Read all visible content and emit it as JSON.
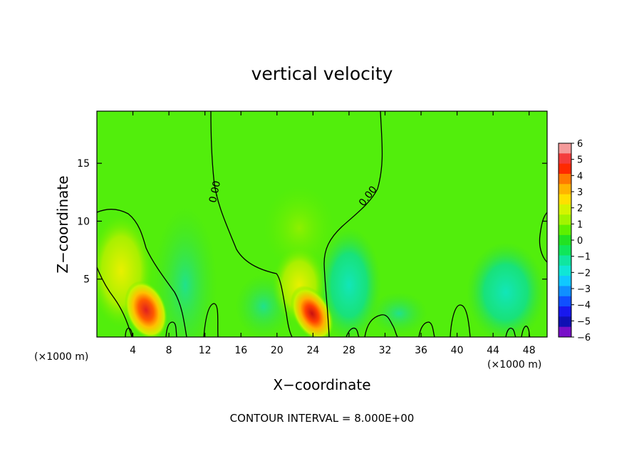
{
  "chart_data": {
    "type": "heatmap",
    "title": "vertical velocity",
    "xlabel": "X−coordinate",
    "ylabel": "Z−coordinate",
    "x_unit_left": "(×1000 m)",
    "x_unit_right": "(×1000 m)",
    "xlim": [
      0,
      50
    ],
    "ylim": [
      0,
      19.5
    ],
    "xticks": [
      4,
      8,
      12,
      16,
      20,
      24,
      28,
      32,
      36,
      40,
      44,
      48
    ],
    "yticks": [
      5,
      10,
      15
    ],
    "colorbar": {
      "ticks": [
        "6",
        "5",
        "4",
        "3",
        "2",
        "1",
        "0",
        "−1",
        "−2",
        "−3",
        "−4",
        "−5",
        "−6"
      ],
      "range": [
        -6,
        6
      ],
      "colors": [
        "#f49a9a",
        "#f43c3c",
        "#ff2a00",
        "#ff7a00",
        "#ffb400",
        "#ffe000",
        "#d4f400",
        "#a2f400",
        "#5ef000",
        "#22e222",
        "#10e65a",
        "#10e6a0",
        "#10e6d6",
        "#10c8ff",
        "#1090ff",
        "#1050ff",
        "#1818ee",
        "#1010b4",
        "#7810c8"
      ]
    },
    "contour_label": "0.00",
    "contour_interval": "CONTOUR INTERVAL = 8.000E+00",
    "features": [
      {
        "name": "updraft-west",
        "x": 6,
        "z": 2,
        "peak": 4.5
      },
      {
        "name": "updraft-central",
        "x": 24.5,
        "z": 1.6,
        "peak": 5.5
      },
      {
        "name": "downdraft-east",
        "x": 27,
        "z": 4,
        "peak": -1.5
      },
      {
        "name": "downdraft-far-east",
        "x": 44,
        "z": 3,
        "peak": -1.2
      }
    ]
  }
}
